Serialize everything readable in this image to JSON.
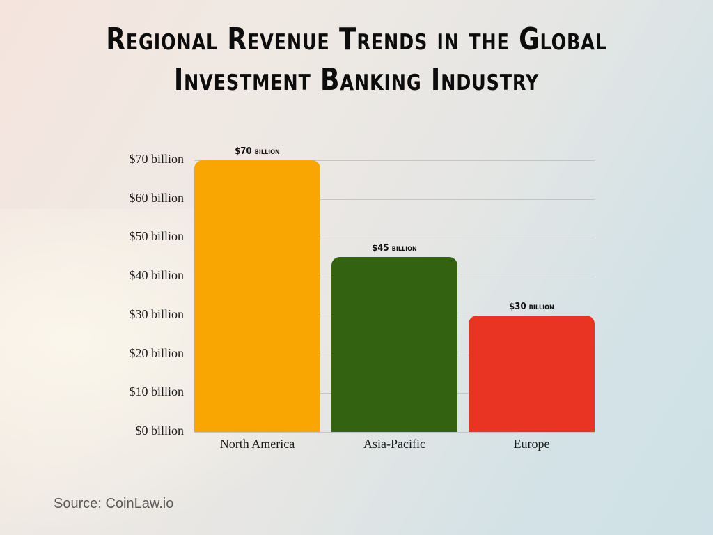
{
  "title_line1": "Regional Revenue Trends in the Global",
  "title_line2": "Investment Banking Industry",
  "source": "Source: CoinLaw.io",
  "chart_data": {
    "type": "bar",
    "title": "Regional Revenue Trends in the Global Investment Banking Industry",
    "xlabel": "",
    "ylabel": "",
    "categories": [
      "North America",
      "Asia-Pacific",
      "Europe"
    ],
    "values": [
      70,
      45,
      30
    ],
    "value_labels": [
      "$70 billion",
      "$45 billion",
      "$30 billion"
    ],
    "colors": [
      "#f9a603",
      "#336210",
      "#e93323"
    ],
    "yticks": [
      "$0 billion",
      "$10 billion",
      "$20 billion",
      "$30 billion",
      "$40 billion",
      "$50 billion",
      "$60 billion",
      "$70 billion"
    ],
    "ytick_values": [
      0,
      10,
      20,
      30,
      40,
      50,
      60,
      70
    ],
    "ylim": [
      0,
      70
    ],
    "grid": true,
    "legend": "none",
    "unit": "billion USD"
  }
}
